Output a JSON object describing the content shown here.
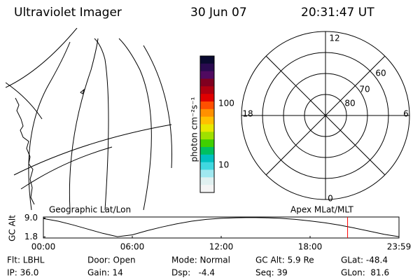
{
  "header": {
    "title": "Ultraviolet Imager",
    "date": "30 Jun 07",
    "time": "20:31:47 UT"
  },
  "colorbar": {
    "label": "photon cm⁻²s⁻¹",
    "ticks": [
      "100",
      "10"
    ]
  },
  "polar": {
    "clock_labels": [
      "12",
      "18",
      "6",
      "0"
    ],
    "ring_labels": [
      "60",
      "70",
      "80"
    ]
  },
  "panels": {
    "left": "Geographic Lat/Lon",
    "right": "Apex MLat/MLT"
  },
  "footer": {
    "rows": [
      [
        "Flt: LBHL",
        "Door: Open",
        "Mode: Normal",
        "GC Alt: 5.9 Re",
        "GLat: -48.4"
      ],
      [
        "IP: 36.0",
        "Gain: 14",
        "Dsp:   -4.4",
        "Seq: 39",
        "GLon:  81.6"
      ]
    ]
  },
  "chart_data": {
    "type": "line",
    "y_label": "GC Alt",
    "x": [
      0,
      1,
      2,
      3,
      4,
      5,
      6,
      7,
      8,
      9,
      10,
      11,
      12,
      13,
      14,
      15,
      16,
      17,
      18,
      19,
      20,
      21,
      22,
      23,
      24
    ],
    "values": [
      8.8,
      7.8,
      6.4,
      4.8,
      3.2,
      1.9,
      2.6,
      4.2,
      5.6,
      6.8,
      7.8,
      8.5,
      8.9,
      9.1,
      9.2,
      9.1,
      8.9,
      8.5,
      7.9,
      7.2,
      6.3,
      5.2,
      4.0,
      2.8,
      1.9
    ],
    "color": "#000000",
    "xlim": [
      0,
      24
    ],
    "xticks": [
      {
        "value": 0,
        "label": "00:00"
      },
      {
        "value": 6,
        "label": "06:00"
      },
      {
        "value": 12,
        "label": "12:00"
      },
      {
        "value": 18,
        "label": "18:00"
      },
      {
        "value": 24,
        "label": "23:59"
      }
    ],
    "ylim": [
      1.4,
      9.4
    ],
    "yticks": [
      {
        "value": 9,
        "label": "9.0"
      },
      1.8
    ],
    "marker_x": 20.53,
    "marker_color": "#ff0000"
  }
}
